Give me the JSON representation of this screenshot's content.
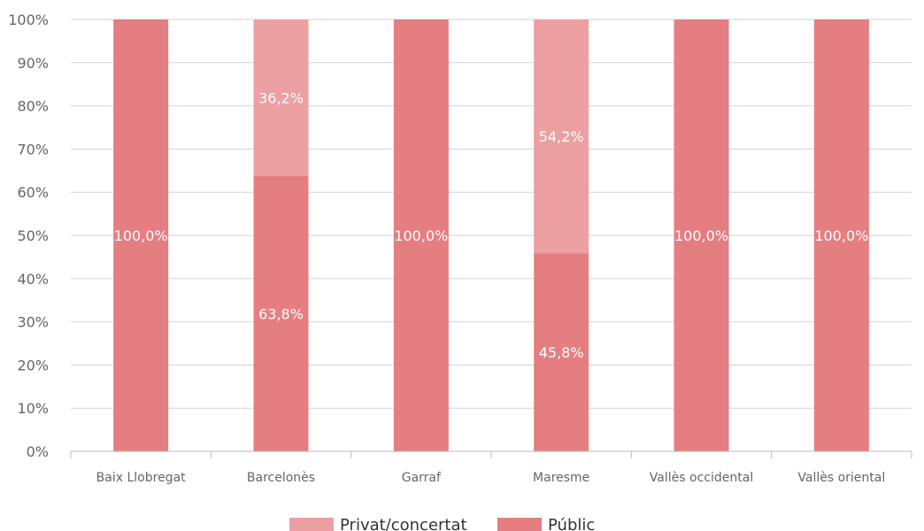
{
  "chart_data": {
    "type": "bar",
    "stacked": true,
    "categories": [
      "Baix Llobregat",
      "Barcelonès",
      "Garraf",
      "Maresme",
      "Vallès occidental",
      "Vallès oriental"
    ],
    "series": [
      {
        "name": "Públic",
        "values": [
          100.0,
          63.8,
          100.0,
          45.8,
          100.0,
          100.0
        ],
        "labels": [
          "100,0%",
          "63,8%",
          "100,0%",
          "45,8%",
          "100,0%",
          "100,0%"
        ],
        "color": "#e57e81"
      },
      {
        "name": "Privat/concertat",
        "values": [
          0,
          36.2,
          0,
          54.2,
          0,
          0
        ],
        "labels": [
          "",
          "36,2%",
          "",
          "54,2%",
          "",
          ""
        ],
        "color": "#eca0a1"
      }
    ],
    "y_ticks": [
      "0%",
      "10%",
      "20%",
      "30%",
      "40%",
      "50%",
      "60%",
      "70%",
      "80%",
      "90%",
      "100%"
    ],
    "ylim": [
      0,
      100
    ],
    "grid": true,
    "legend": {
      "position": "bottom",
      "order": [
        "Privat/concertat",
        "Públic"
      ]
    }
  }
}
